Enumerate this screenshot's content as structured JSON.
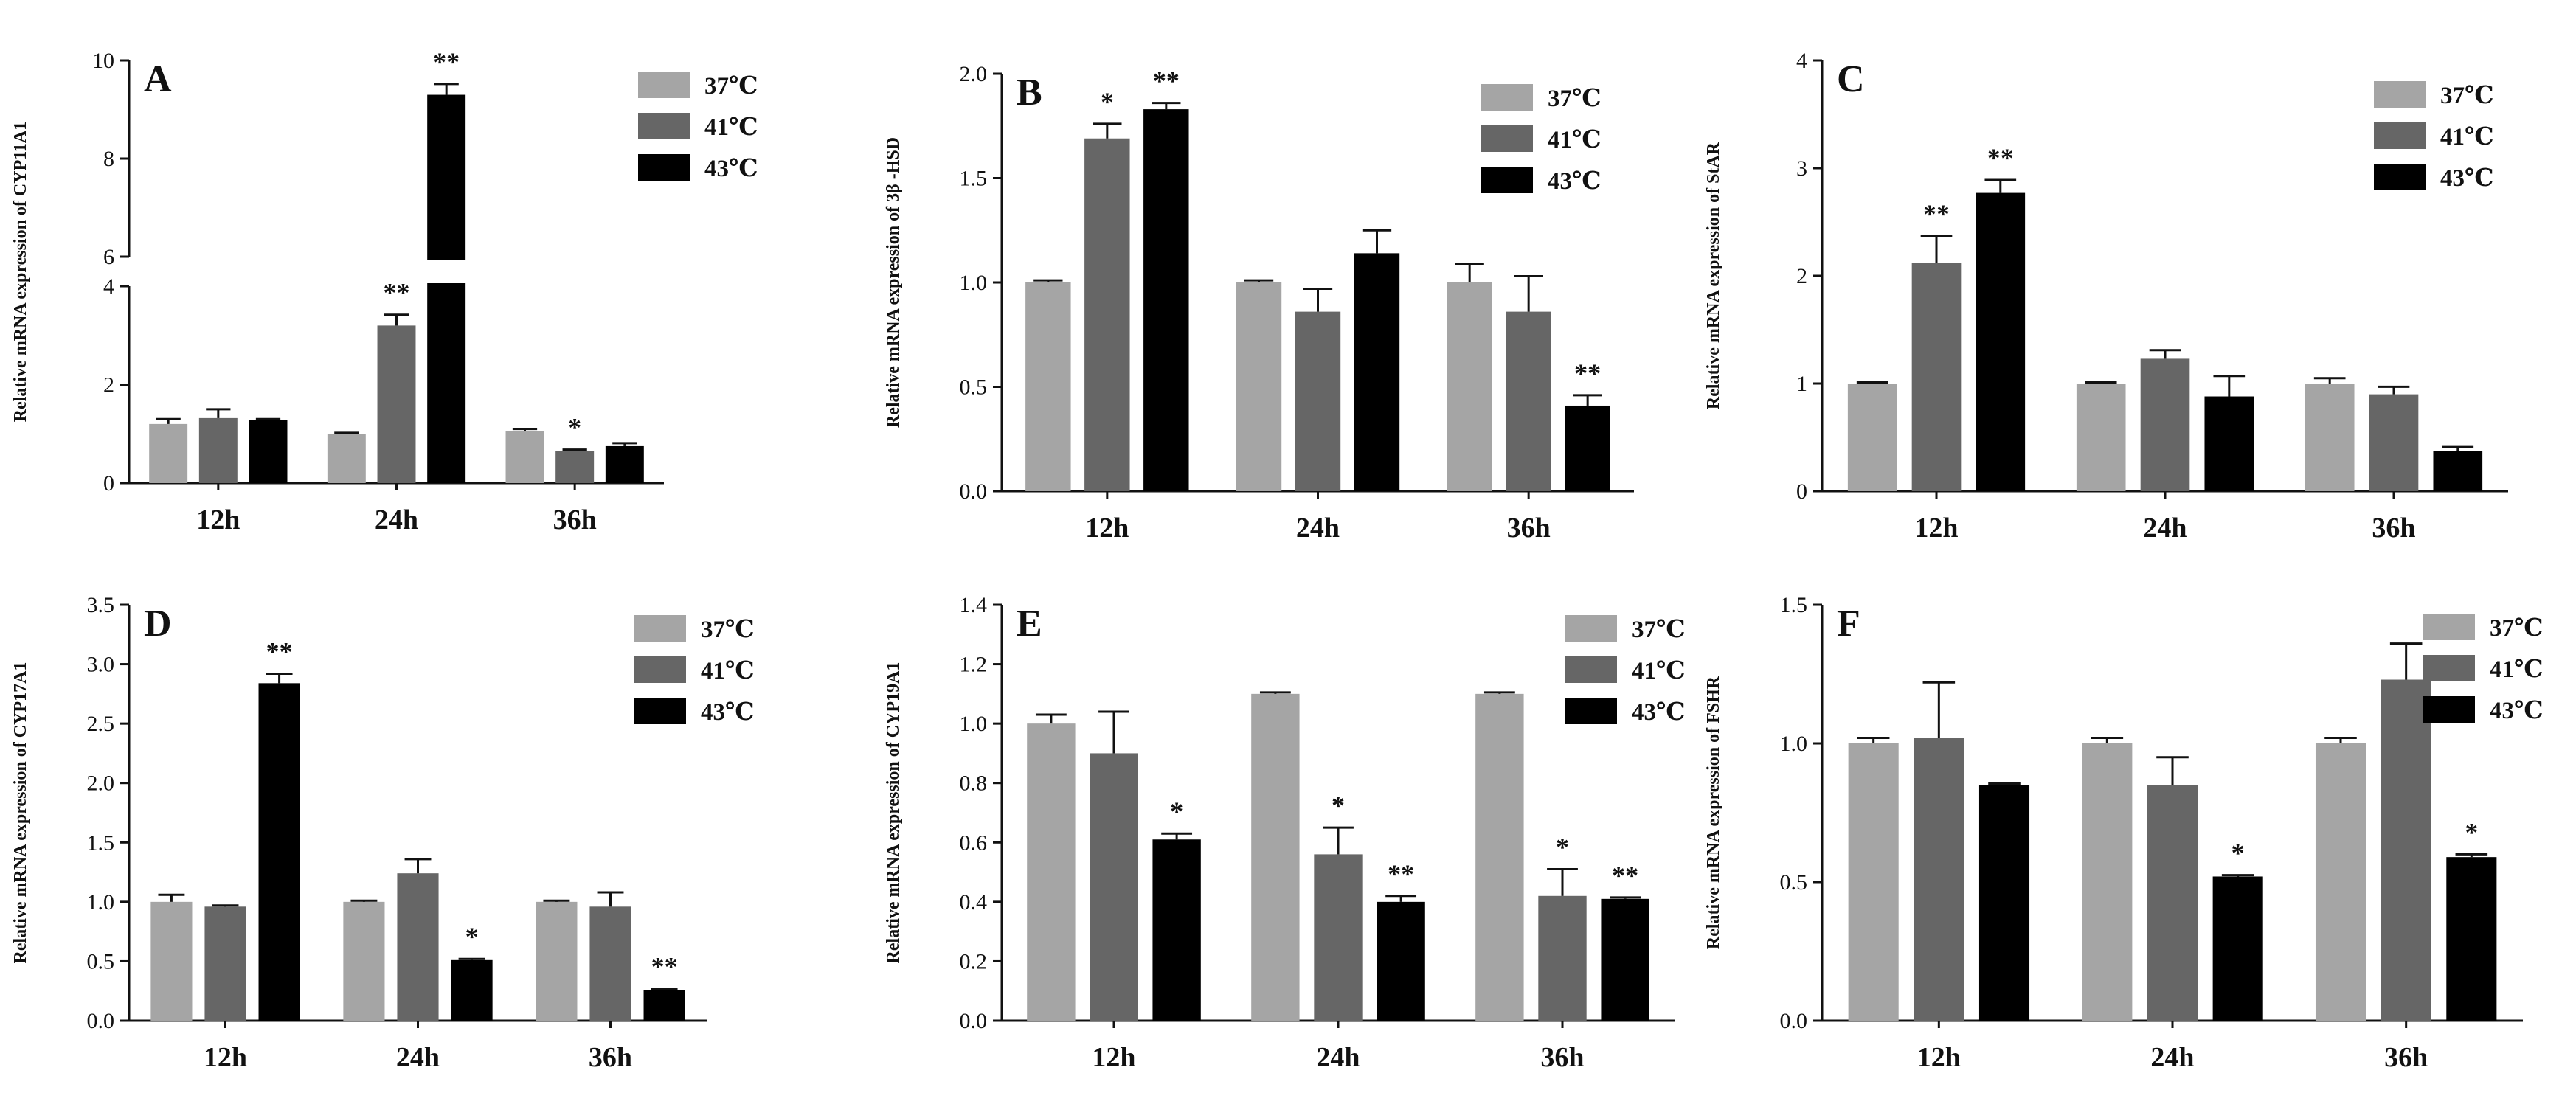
{
  "colors": {
    "37": "#a5a5a5",
    "41": "#666666",
    "43": "#000000"
  },
  "chart_data": [
    {
      "type": "bar",
      "panel": "A",
      "ylabel": "Relative mRNA expression of CYP11A1",
      "categories": [
        "12h",
        "24h",
        "36h"
      ],
      "legend": [
        "37℃",
        "41℃",
        "43℃"
      ],
      "broken_axis": {
        "lower": [
          0,
          4
        ],
        "upper": [
          6,
          10
        ]
      },
      "yticks_lower": [
        "0",
        "2",
        "4"
      ],
      "yticks_lower_values": [
        0,
        2,
        4
      ],
      "yticks_upper": [
        "6",
        "8",
        "10"
      ],
      "yticks_upper_values": [
        6,
        8,
        10
      ],
      "series": [
        {
          "name": "37℃",
          "values": [
            1.2,
            1.0,
            1.05
          ],
          "err": [
            0.1,
            0.02,
            0.05
          ],
          "sig": [
            "",
            "",
            ""
          ]
        },
        {
          "name": "41℃",
          "values": [
            1.32,
            3.2,
            0.65
          ],
          "err": [
            0.18,
            0.22,
            0.03
          ],
          "sig": [
            "",
            "**",
            "*"
          ]
        },
        {
          "name": "43℃",
          "values": [
            1.28,
            9.3,
            0.75
          ],
          "err": [
            0.02,
            0.22,
            0.06
          ],
          "sig": [
            "",
            "**",
            ""
          ]
        }
      ]
    },
    {
      "type": "bar",
      "panel": "B",
      "ylabel": "Relative mRNA expression of 3β -HSD",
      "categories": [
        "12h",
        "24h",
        "36h"
      ],
      "legend": [
        "37℃",
        "41℃",
        "43℃"
      ],
      "ylim": [
        0,
        2.0
      ],
      "yticks": [
        "0.0",
        "0.5",
        "1.0",
        "1.5",
        "2.0"
      ],
      "yticks_values": [
        0,
        0.5,
        1.0,
        1.5,
        2.0
      ],
      "series": [
        {
          "name": "37℃",
          "values": [
            1.0,
            1.0,
            1.0
          ],
          "err": [
            0.01,
            0.01,
            0.09
          ],
          "sig": [
            "",
            "",
            ""
          ]
        },
        {
          "name": "41℃",
          "values": [
            1.69,
            0.86,
            0.86
          ],
          "err": [
            0.07,
            0.11,
            0.17
          ],
          "sig": [
            "*",
            "",
            ""
          ]
        },
        {
          "name": "43℃",
          "values": [
            1.83,
            1.14,
            0.41
          ],
          "err": [
            0.03,
            0.11,
            0.05
          ],
          "sig": [
            "**",
            "",
            "**"
          ]
        }
      ]
    },
    {
      "type": "bar",
      "panel": "C",
      "ylabel": "Relative mRNA expression of StAR",
      "categories": [
        "12h",
        "24h",
        "36h"
      ],
      "legend": [
        "37℃",
        "41℃",
        "43℃"
      ],
      "ylim": [
        0,
        4
      ],
      "yticks": [
        "0",
        "1",
        "2",
        "3",
        "4"
      ],
      "yticks_values": [
        0,
        1,
        2,
        3,
        4
      ],
      "series": [
        {
          "name": "37℃",
          "values": [
            1.0,
            1.0,
            1.0
          ],
          "err": [
            0.01,
            0.01,
            0.05
          ],
          "sig": [
            "",
            "",
            ""
          ]
        },
        {
          "name": "41℃",
          "values": [
            2.12,
            1.23,
            0.9
          ],
          "err": [
            0.25,
            0.08,
            0.07
          ],
          "sig": [
            "**",
            "",
            ""
          ]
        },
        {
          "name": "43℃",
          "values": [
            2.77,
            0.88,
            0.37
          ],
          "err": [
            0.12,
            0.19,
            0.04
          ],
          "sig": [
            "**",
            "",
            ""
          ]
        }
      ]
    },
    {
      "type": "bar",
      "panel": "D",
      "ylabel": "Relative mRNA expression of CYP17A1",
      "categories": [
        "12h",
        "24h",
        "36h"
      ],
      "legend": [
        "37℃",
        "41℃",
        "43℃"
      ],
      "ylim": [
        0,
        3.5
      ],
      "yticks": [
        "0.0",
        "0.5",
        "1.0",
        "1.5",
        "2.0",
        "2.5",
        "3.0",
        "3.5"
      ],
      "yticks_values": [
        0,
        0.5,
        1.0,
        1.5,
        2.0,
        2.5,
        3.0,
        3.5
      ],
      "series": [
        {
          "name": "37℃",
          "values": [
            1.0,
            1.0,
            1.0
          ],
          "err": [
            0.06,
            0.01,
            0.01
          ],
          "sig": [
            "",
            "",
            ""
          ]
        },
        {
          "name": "41℃",
          "values": [
            0.96,
            1.24,
            0.96
          ],
          "err": [
            0.01,
            0.12,
            0.12
          ],
          "sig": [
            "",
            "",
            ""
          ]
        },
        {
          "name": "43℃",
          "values": [
            2.84,
            0.51,
            0.26
          ],
          "err": [
            0.08,
            0.01,
            0.01
          ],
          "sig": [
            "**",
            "*",
            "**"
          ]
        }
      ]
    },
    {
      "type": "bar",
      "panel": "E",
      "ylabel": "Relative mRNA expression of CYP19A1",
      "categories": [
        "12h",
        "24h",
        "36h"
      ],
      "legend": [
        "37℃",
        "41℃",
        "43℃"
      ],
      "ylim": [
        0,
        1.4
      ],
      "yticks": [
        "0.0",
        "0.2",
        "0.4",
        "0.6",
        "0.8",
        "1.0",
        "1.2",
        "1.4"
      ],
      "yticks_values": [
        0,
        0.2,
        0.4,
        0.6,
        0.8,
        1.0,
        1.2,
        1.4
      ],
      "series": [
        {
          "name": "37℃",
          "values": [
            1.0,
            1.1,
            1.1
          ],
          "err": [
            0.03,
            0.005,
            0.005
          ],
          "sig": [
            "",
            "",
            ""
          ]
        },
        {
          "name": "41℃",
          "values": [
            0.9,
            0.56,
            0.42
          ],
          "err": [
            0.14,
            0.09,
            0.09
          ],
          "sig": [
            "",
            "*",
            "*"
          ]
        },
        {
          "name": "43℃",
          "values": [
            0.61,
            0.4,
            0.41
          ],
          "err": [
            0.02,
            0.02,
            0.005
          ],
          "sig": [
            "*",
            "**",
            "**"
          ]
        }
      ]
    },
    {
      "type": "bar",
      "panel": "F",
      "ylabel": "Relative mRNA expression of FSHR",
      "categories": [
        "12h",
        "24h",
        "36h"
      ],
      "legend": [
        "37℃",
        "41℃",
        "43℃"
      ],
      "ylim": [
        0,
        1.5
      ],
      "yticks": [
        "0.0",
        "0.5",
        "1.0",
        "1.5"
      ],
      "yticks_values": [
        0,
        0.5,
        1.0,
        1.5
      ],
      "series": [
        {
          "name": "37℃",
          "values": [
            1.0,
            1.0,
            1.0
          ],
          "err": [
            0.02,
            0.02,
            0.02
          ],
          "sig": [
            "",
            "",
            ""
          ]
        },
        {
          "name": "41℃",
          "values": [
            1.02,
            0.85,
            1.23
          ],
          "err": [
            0.2,
            0.1,
            0.13
          ],
          "sig": [
            "",
            "",
            ""
          ]
        },
        {
          "name": "43℃",
          "values": [
            0.85,
            0.52,
            0.59
          ],
          "err": [
            0.005,
            0.005,
            0.01
          ],
          "sig": [
            "",
            "*",
            "*"
          ]
        }
      ]
    }
  ]
}
